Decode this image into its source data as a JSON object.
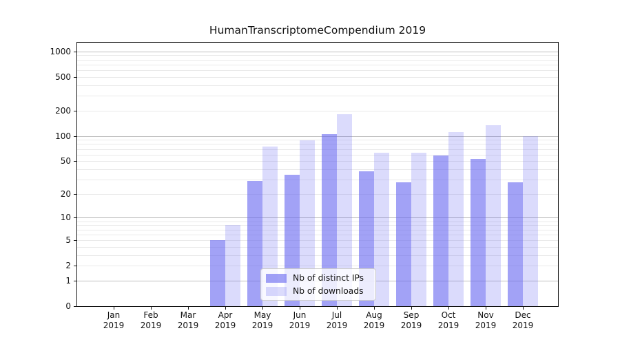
{
  "title": "HumanTranscriptomeCompendium 2019",
  "legend": {
    "items": [
      {
        "label": "Nb of distinct IPs",
        "series": "ips"
      },
      {
        "label": "Nb of downloads",
        "series": "downloads"
      }
    ]
  },
  "colors": {
    "bar_ips": "rgba(100,100,240,0.60)",
    "bar_downloads": "rgba(100,100,240,0.23)",
    "grid_major": "#bdbdbd",
    "grid_minor": "#e9e9e9",
    "axis": "#141414",
    "text": "#111111",
    "legend_bg": "rgba(255,255,255,0.8)",
    "legend_border": "#cccccc"
  },
  "chart_data": {
    "type": "bar",
    "title": "HumanTranscriptomeCompendium 2019",
    "categories": [
      "Jan 2019",
      "Feb 2019",
      "Mar 2019",
      "Apr 2019",
      "May 2019",
      "Jun 2019",
      "Jul 2019",
      "Aug 2019",
      "Sep 2019",
      "Oct 2019",
      "Nov 2019",
      "Dec 2019"
    ],
    "series": [
      {
        "name": "Nb of distinct IPs",
        "values": [
          0,
          0,
          0,
          5,
          29,
          34,
          106,
          38,
          28,
          58,
          53,
          28
        ]
      },
      {
        "name": "Nb of downloads",
        "values": [
          0,
          0,
          0,
          8,
          75,
          88,
          180,
          63,
          63,
          112,
          133,
          100
        ]
      }
    ],
    "xlabel": "",
    "ylabel": "",
    "yscale": "log1p",
    "yticks": [
      0,
      1,
      2,
      5,
      10,
      20,
      50,
      100,
      200,
      500,
      1000
    ],
    "ylim": [
      0,
      1250
    ],
    "grid": "major gridlines at powers of 10 (darker), minor gridlines at 2-9 multiples (lighter)",
    "legend_position": "lower center inside plot"
  }
}
